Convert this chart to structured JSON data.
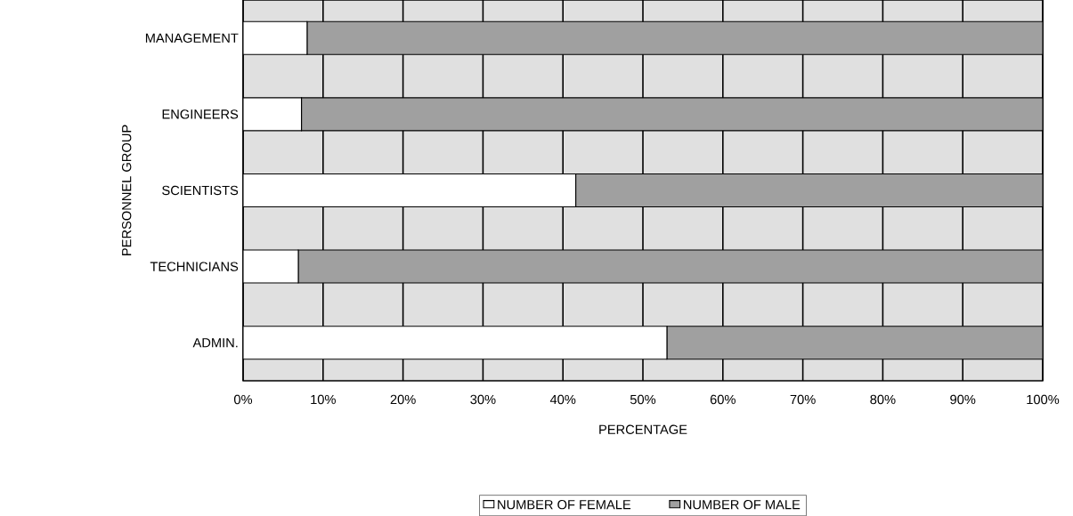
{
  "chart_data": {
    "type": "bar",
    "orientation": "horizontal",
    "stacked": true,
    "xlabel": "PERCENTAGE",
    "ylabel": "PERSONNEL GROUP",
    "categories": [
      "MANAGEMENT",
      "ENGINEERS",
      "SCIENTISTS",
      "TECHNICIANS",
      "ADMIN."
    ],
    "series": [
      {
        "name": "NUMBER OF FEMALE",
        "color": "#ffffff",
        "values": [
          8,
          7.3,
          41.6,
          6.9,
          53
        ]
      },
      {
        "name": "NUMBER OF MALE",
        "color": "#a0a0a0",
        "values": [
          92,
          92.7,
          58.4,
          93.1,
          47
        ]
      }
    ],
    "xlim": [
      0,
      100
    ],
    "xticks": [
      {
        "value": 0,
        "label": "0%"
      },
      {
        "value": 10,
        "label": "10%"
      },
      {
        "value": 20,
        "label": "20%"
      },
      {
        "value": 30,
        "label": "30%"
      },
      {
        "value": 40,
        "label": "40%"
      },
      {
        "value": 50,
        "label": "50%"
      },
      {
        "value": 60,
        "label": "60%"
      },
      {
        "value": 70,
        "label": "70%"
      },
      {
        "value": 80,
        "label": "80%"
      },
      {
        "value": 90,
        "label": "90%"
      },
      {
        "value": 100,
        "label": "100%"
      }
    ],
    "grid": "x",
    "legend": "bottom"
  }
}
